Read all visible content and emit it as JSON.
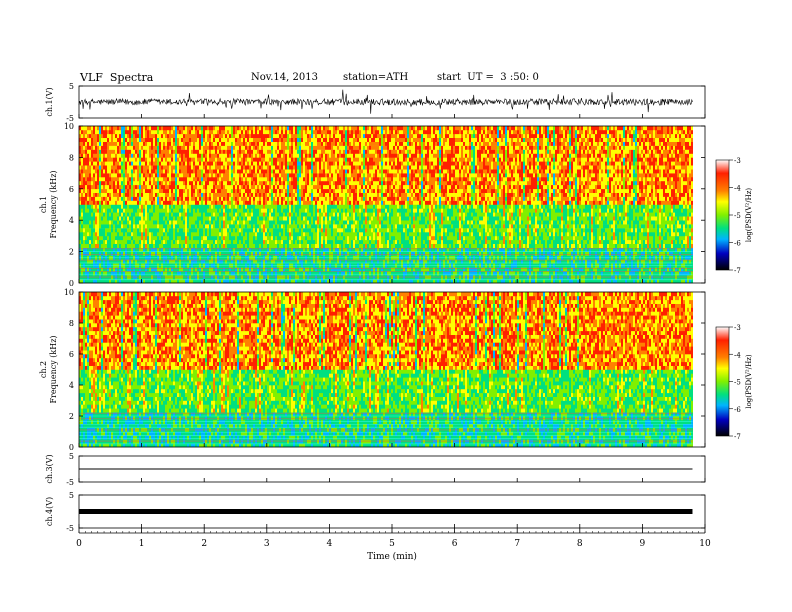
{
  "header": {
    "title": "VLF  Spectra",
    "date": "Nov.14, 2013",
    "station": "station=ATH",
    "start": "start  UT =  3 :50: 0"
  },
  "colorbar": {
    "label": "log(PSD(V²/Hz)",
    "ticks": [
      "-3",
      "-4",
      "-5",
      "-6",
      "-7"
    ]
  },
  "chart_data": [
    {
      "type": "line",
      "name": "ch1-waveform",
      "ylabel": "ch.1(V)",
      "ylim": [
        -5,
        5
      ],
      "y_ticks": [
        "5",
        "-5"
      ],
      "xlim": [
        0,
        10
      ],
      "data_end_min": 9.8,
      "baseline": 0,
      "amplitude": 2
    },
    {
      "type": "heatmap",
      "name": "ch1-spectrogram",
      "ylabel": "ch.1\nFrequency  (kHz)",
      "ylim": [
        0,
        10
      ],
      "y_ticks": [
        "0",
        "2",
        "4",
        "6",
        "8",
        "10"
      ],
      "xlim": [
        0,
        10
      ],
      "data_end_min": 9.8,
      "zlim": [
        -7,
        -3
      ],
      "colors": [
        "#000000",
        "#0000c0",
        "#00b4ff",
        "#00e080",
        "#80f000",
        "#ffff00",
        "#ff8000",
        "#ff2000"
      ]
    },
    {
      "type": "heatmap",
      "name": "ch2-spectrogram",
      "ylabel": "ch.2\nFrequency  (kHz)",
      "ylim": [
        0,
        10
      ],
      "y_ticks": [
        "0",
        "2",
        "4",
        "6",
        "8",
        "10"
      ],
      "xlim": [
        0,
        10
      ],
      "data_end_min": 9.8,
      "zlim": [
        -7,
        -3
      ]
    },
    {
      "type": "line",
      "name": "ch3-waveform",
      "ylabel": "ch.3(V)",
      "ylim": [
        -5,
        5
      ],
      "y_ticks": [
        "5",
        "-5"
      ],
      "xlim": [
        0,
        10
      ],
      "data_end_min": 9.8,
      "baseline": 0,
      "amplitude": 0.1
    },
    {
      "type": "line",
      "name": "ch4-waveform",
      "ylabel": "ch.4(V)",
      "ylim": [
        -5,
        5
      ],
      "y_ticks": [
        "5",
        "-5"
      ],
      "xlim": [
        0,
        10
      ],
      "data_end_min": 9.8,
      "baseline": 0,
      "amplitude": 0
    }
  ],
  "x_axis": {
    "label": "Time  (min)",
    "ticks": [
      "0",
      "1",
      "2",
      "3",
      "4",
      "5",
      "6",
      "7",
      "8",
      "9",
      "10"
    ]
  }
}
